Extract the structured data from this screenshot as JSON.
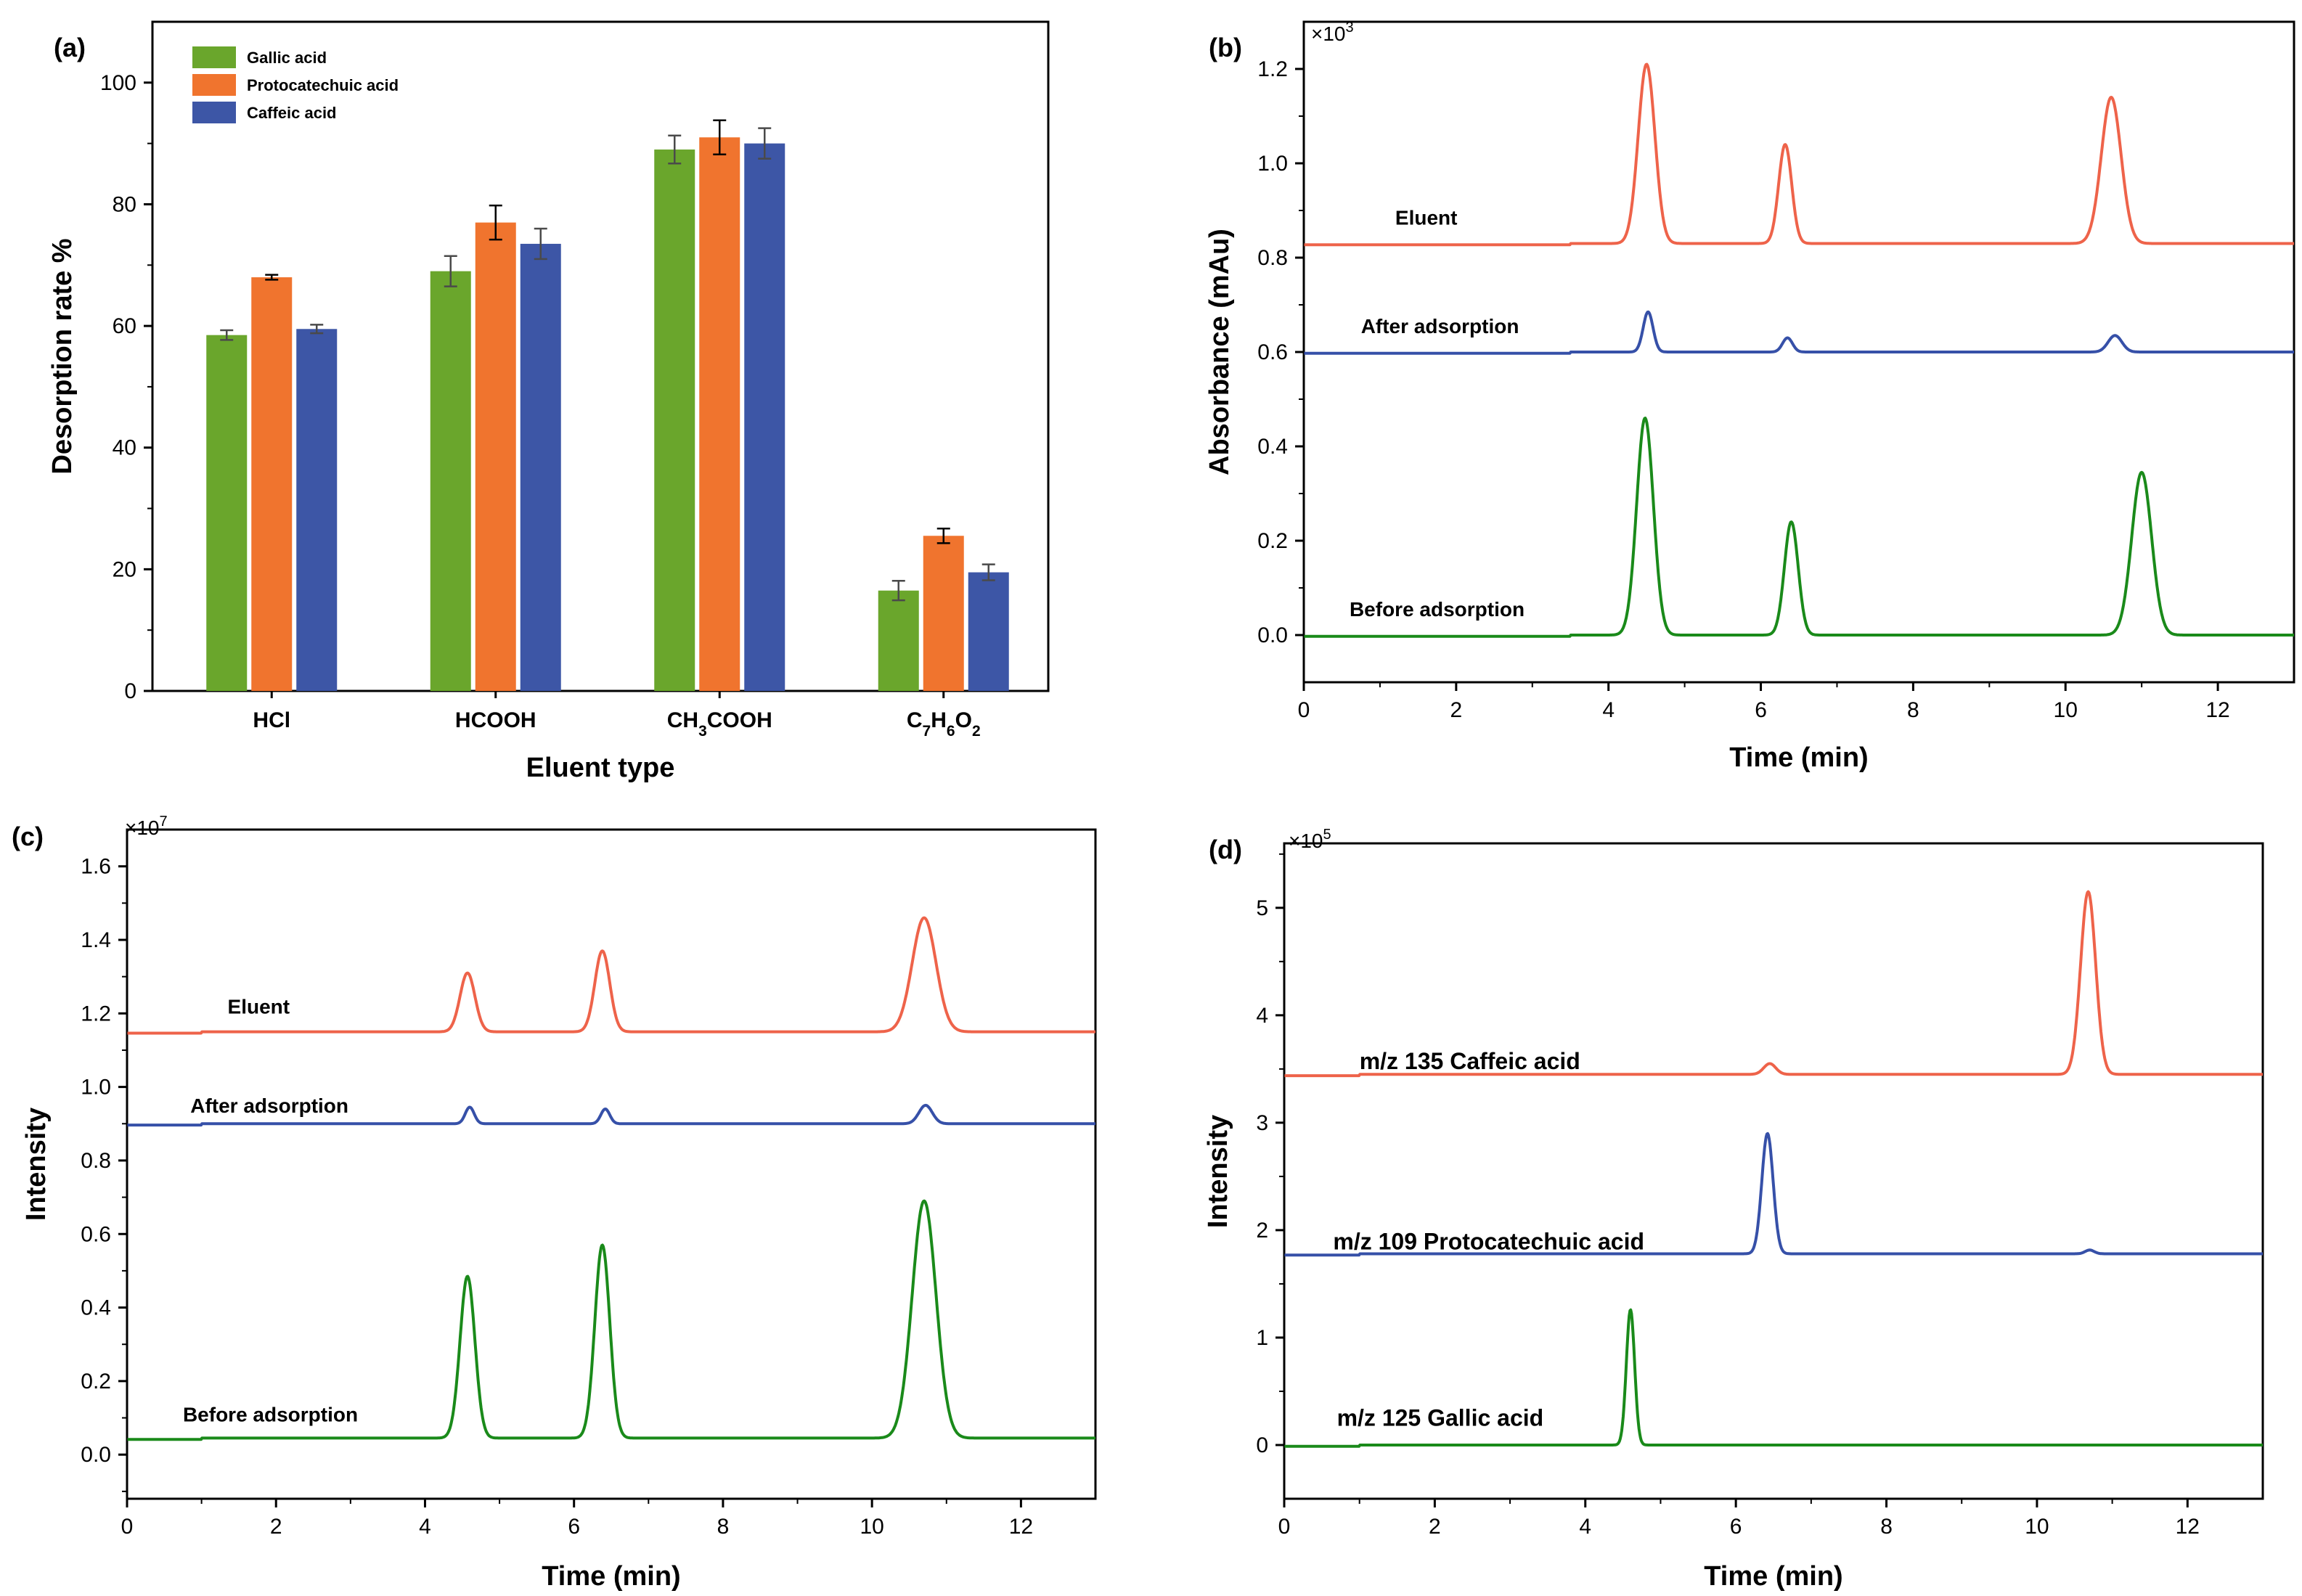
{
  "colors": {
    "green": "#6aa62c",
    "orange": "#f0742e",
    "blue": "#3d56a6",
    "trace_red": "#ee634a",
    "trace_blue": "#3650a8",
    "trace_green": "#1a8a1a"
  },
  "chart_data": [
    {
      "id": "a",
      "type": "bar",
      "panel_label": "(a)",
      "xlabel": "Eluent type",
      "ylabel": "Desorption rate %",
      "ylim": [
        0,
        110
      ],
      "yticks": [
        0,
        20,
        40,
        60,
        80,
        100
      ],
      "categories": [
        "HCl",
        "HCOOH",
        "CH3COOH",
        "C7H6O2"
      ],
      "category_labels": [
        {
          "base": "HCl",
          "parts": [
            [
              "HCl",
              ""
            ]
          ]
        },
        {
          "base": "HCOOH",
          "parts": [
            [
              "HCOOH",
              ""
            ]
          ]
        },
        {
          "base": "CH3COOH",
          "parts": [
            [
              "CH",
              ""
            ],
            [
              "3",
              "sub"
            ],
            [
              "COOH",
              ""
            ]
          ]
        },
        {
          "base": "C7H6O2",
          "parts": [
            [
              "C",
              ""
            ],
            [
              "7",
              "sub"
            ],
            [
              "H",
              ""
            ],
            [
              "6",
              "sub"
            ],
            [
              "O",
              ""
            ],
            [
              "2",
              "sub"
            ]
          ]
        }
      ],
      "legend_position": "top-left",
      "series": [
        {
          "name": "Gallic acid",
          "color": "green",
          "values": [
            58.5,
            69,
            89,
            16.5
          ],
          "errors": [
            0.8,
            2.5,
            2.3,
            1.6
          ]
        },
        {
          "name": "Protocatechuic acid",
          "color": "orange",
          "values": [
            68,
            77,
            91,
            25.5
          ],
          "errors": [
            0.4,
            2.8,
            2.8,
            1.2
          ]
        },
        {
          "name": "Caffeic acid",
          "color": "blue",
          "values": [
            59.5,
            73.5,
            90,
            19.5
          ],
          "errors": [
            0.7,
            2.5,
            2.5,
            1.3
          ]
        }
      ]
    },
    {
      "id": "b",
      "type": "line",
      "panel_label": "(b)",
      "xlabel": "Time (min)",
      "ylabel": "Absorbance (mAu)",
      "scale_prefix": "×10",
      "scale_exp": "3",
      "xlim": [
        0,
        13
      ],
      "ylim": [
        -0.1,
        1.3
      ],
      "xticks": [
        0,
        2,
        4,
        6,
        8,
        10,
        12
      ],
      "yticks": [
        0.0,
        0.2,
        0.4,
        0.6,
        0.8,
        1.0,
        1.2
      ],
      "ytick_labels": [
        "0.0",
        "0.2",
        "0.4",
        "0.6",
        "0.8",
        "1.0",
        "1.2"
      ],
      "series": [
        {
          "name": "Eluent",
          "color": "trace_red",
          "baseline": 0.83,
          "peaks": [
            {
              "x": 4.5,
              "h": 0.38,
              "w": 0.11
            },
            {
              "x": 6.32,
              "h": 0.21,
              "w": 0.085
            },
            {
              "x": 10.6,
              "h": 0.31,
              "w": 0.13
            }
          ]
        },
        {
          "name": "After adsorption",
          "color": "trace_blue",
          "baseline": 0.6,
          "peaks": [
            {
              "x": 4.52,
              "h": 0.085,
              "w": 0.065
            },
            {
              "x": 6.35,
              "h": 0.03,
              "w": 0.065
            },
            {
              "x": 10.65,
              "h": 0.035,
              "w": 0.09
            }
          ]
        },
        {
          "name": "Before adsorption",
          "color": "trace_green",
          "baseline": 0.0,
          "peaks": [
            {
              "x": 4.48,
              "h": 0.46,
              "w": 0.11
            },
            {
              "x": 6.4,
              "h": 0.24,
              "w": 0.09
            },
            {
              "x": 11.0,
              "h": 0.345,
              "w": 0.13
            }
          ]
        }
      ],
      "annotations": [
        {
          "text": "Eluent",
          "x": 1.2,
          "y": 0.87
        },
        {
          "text": "After adsorption",
          "x": 0.75,
          "y": 0.64
        },
        {
          "text": "Before adsorption",
          "x": 0.6,
          "y": 0.04
        }
      ]
    },
    {
      "id": "c",
      "type": "line",
      "panel_label": "(c)",
      "xlabel": "Time (min)",
      "ylabel": "Intensity",
      "scale_prefix": "×10",
      "scale_exp": "7",
      "xlim": [
        0,
        13
      ],
      "ylim": [
        -0.12,
        1.7
      ],
      "xticks": [
        0,
        2,
        4,
        6,
        8,
        10,
        12
      ],
      "yticks": [
        0.0,
        0.2,
        0.4,
        0.6,
        0.8,
        1.0,
        1.2,
        1.4,
        1.6
      ],
      "ytick_labels": [
        "0.0",
        "0.2",
        "0.4",
        "0.6",
        "0.8",
        "1.0",
        "1.2",
        "1.4",
        "1.6"
      ],
      "series": [
        {
          "name": "Eluent",
          "color": "trace_red",
          "baseline": 1.15,
          "peaks": [
            {
              "x": 4.57,
              "h": 0.16,
              "w": 0.1
            },
            {
              "x": 6.38,
              "h": 0.22,
              "w": 0.1
            },
            {
              "x": 10.7,
              "h": 0.31,
              "w": 0.16
            }
          ]
        },
        {
          "name": "After adsorption",
          "color": "trace_blue",
          "baseline": 0.9,
          "peaks": [
            {
              "x": 4.6,
              "h": 0.045,
              "w": 0.06
            },
            {
              "x": 6.42,
              "h": 0.04,
              "w": 0.06
            },
            {
              "x": 10.72,
              "h": 0.05,
              "w": 0.09
            }
          ]
        },
        {
          "name": "Before adsorption",
          "color": "trace_green",
          "baseline": 0.045,
          "peaks": [
            {
              "x": 4.57,
              "h": 0.44,
              "w": 0.1
            },
            {
              "x": 6.38,
              "h": 0.525,
              "w": 0.1
            },
            {
              "x": 10.7,
              "h": 0.645,
              "w": 0.16
            }
          ]
        }
      ],
      "annotations": [
        {
          "text": "Eluent",
          "x": 1.35,
          "y": 1.2
        },
        {
          "text": "After adsorption",
          "x": 0.85,
          "y": 0.93
        },
        {
          "text": "Before adsorption",
          "x": 0.75,
          "y": 0.09
        }
      ]
    },
    {
      "id": "d",
      "type": "line",
      "panel_label": "(d)",
      "xlabel": "Time (min)",
      "ylabel": "Intensity",
      "scale_prefix": "×10",
      "scale_exp": "5",
      "xlim": [
        0,
        13
      ],
      "ylim": [
        -0.5,
        5.6
      ],
      "xticks": [
        0,
        2,
        4,
        6,
        8,
        10,
        12
      ],
      "yticks": [
        0,
        1,
        2,
        3,
        4,
        5
      ],
      "ytick_labels": [
        "0",
        "1",
        "2",
        "3",
        "4",
        "5"
      ],
      "series": [
        {
          "name": "m/z 135 Caffeic acid",
          "color": "trace_red",
          "baseline": 3.45,
          "peaks": [
            {
              "x": 6.45,
              "h": 0.1,
              "w": 0.08
            },
            {
              "x": 10.68,
              "h": 1.7,
              "w": 0.1
            }
          ]
        },
        {
          "name": "m/z 109 Protocatechuic acid",
          "color": "trace_blue",
          "baseline": 1.78,
          "peaks": [
            {
              "x": 6.42,
              "h": 1.12,
              "w": 0.075
            },
            {
              "x": 10.7,
              "h": 0.035,
              "w": 0.06
            }
          ]
        },
        {
          "name": "m/z 125 Gallic acid",
          "color": "trace_green",
          "baseline": 0.0,
          "peaks": [
            {
              "x": 4.6,
              "h": 1.26,
              "w": 0.055
            }
          ]
        }
      ],
      "annotations": [
        {
          "text": "m/z 135 Caffeic acid",
          "x": 1.0,
          "y": 3.5
        },
        {
          "text": "m/z 109 Protocatechuic acid",
          "x": 0.65,
          "y": 1.82
        },
        {
          "text": "m/z 125 Gallic acid",
          "x": 0.7,
          "y": 0.18
        }
      ]
    }
  ]
}
